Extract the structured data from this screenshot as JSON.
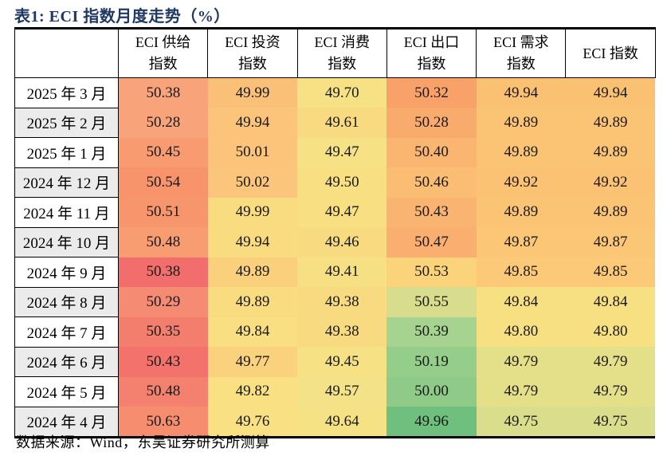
{
  "title": "表1:  ECI 指数月度走势（%）",
  "footer": "数据来源：Wind，东吴证券研究所测算",
  "colors": {
    "title_navy": "#1F3864",
    "border_black": "#000000",
    "row_label_alt_bg": "#EBEBEB",
    "row_label_bg": "#FFFFFF"
  },
  "table": {
    "columns": [
      [
        "ECI 供给",
        "指数"
      ],
      [
        "ECI 投资",
        "指数"
      ],
      [
        "ECI 消费",
        "指数"
      ],
      [
        "ECI 出口",
        "指数"
      ],
      [
        "ECI 需求",
        "指数"
      ],
      [
        "ECI 指数"
      ]
    ],
    "rows": [
      {
        "label": "2025 年 3 月",
        "cells": [
          {
            "v": "50.38",
            "bg": "#F8A379"
          },
          {
            "v": "49.99",
            "bg": "#FBC078"
          },
          {
            "v": "49.70",
            "bg": "#F6E284"
          },
          {
            "v": "50.32",
            "bg": "#F8A169"
          },
          {
            "v": "49.94",
            "bg": "#FBC173"
          },
          {
            "v": "49.94",
            "bg": "#FBC173"
          }
        ]
      },
      {
        "label": "2025 年 2 月",
        "cells": [
          {
            "v": "50.28",
            "bg": "#F8A379"
          },
          {
            "v": "49.94",
            "bg": "#FBC47A"
          },
          {
            "v": "49.61",
            "bg": "#F8DA80"
          },
          {
            "v": "50.28",
            "bg": "#F9AA6D"
          },
          {
            "v": "49.89",
            "bg": "#FBC475"
          },
          {
            "v": "49.89",
            "bg": "#FBC475"
          }
        ]
      },
      {
        "label": "2025 年 1 月",
        "cells": [
          {
            "v": "50.45",
            "bg": "#F89B71"
          },
          {
            "v": "50.01",
            "bg": "#FBC47A"
          },
          {
            "v": "49.47",
            "bg": "#F6E284"
          },
          {
            "v": "50.40",
            "bg": "#FAB671"
          },
          {
            "v": "49.89",
            "bg": "#FBC475"
          },
          {
            "v": "49.89",
            "bg": "#FBC475"
          }
        ]
      },
      {
        "label": "2024 年 12 月",
        "cells": [
          {
            "v": "50.54",
            "bg": "#F7946C"
          },
          {
            "v": "50.02",
            "bg": "#FBC67B"
          },
          {
            "v": "49.50",
            "bg": "#F7DF82"
          },
          {
            "v": "50.46",
            "bg": "#FBBC73"
          },
          {
            "v": "49.92",
            "bg": "#FBC273"
          },
          {
            "v": "49.92",
            "bg": "#FBC273"
          }
        ]
      },
      {
        "label": "2024 年 11 月",
        "cells": [
          {
            "v": "50.51",
            "bg": "#F7966D"
          },
          {
            "v": "49.99",
            "bg": "#F9DC80"
          },
          {
            "v": "49.47",
            "bg": "#F7DF82"
          },
          {
            "v": "50.43",
            "bg": "#FAB471"
          },
          {
            "v": "49.89",
            "bg": "#FBC475"
          },
          {
            "v": "49.89",
            "bg": "#FBC475"
          }
        ]
      },
      {
        "label": "2024 年 10 月",
        "cells": [
          {
            "v": "50.48",
            "bg": "#F89D72"
          },
          {
            "v": "49.94",
            "bg": "#F9DC80"
          },
          {
            "v": "49.46",
            "bg": "#F8DB80"
          },
          {
            "v": "50.47",
            "bg": "#FAAE6F"
          },
          {
            "v": "49.87",
            "bg": "#FBC776"
          },
          {
            "v": "49.87",
            "bg": "#FBC776"
          }
        ]
      },
      {
        "label": "2024 年 9 月",
        "cells": [
          {
            "v": "50.38",
            "bg": "#F26E6C"
          },
          {
            "v": "49.89",
            "bg": "#FAD07C"
          },
          {
            "v": "49.41",
            "bg": "#F7E083"
          },
          {
            "v": "50.53",
            "bg": "#FBD37B"
          },
          {
            "v": "49.85",
            "bg": "#FBC977"
          },
          {
            "v": "49.85",
            "bg": "#FBC977"
          }
        ]
      },
      {
        "label": "2024 年 8 月",
        "cells": [
          {
            "v": "50.29",
            "bg": "#F58B72"
          },
          {
            "v": "49.89",
            "bg": "#F9DB80"
          },
          {
            "v": "49.38",
            "bg": "#F8DB80"
          },
          {
            "v": "50.55",
            "bg": "#D8DD8D"
          },
          {
            "v": "49.84",
            "bg": "#F7E082"
          },
          {
            "v": "49.84",
            "bg": "#F7E082"
          }
        ]
      },
      {
        "label": "2024 年 7 月",
        "cells": [
          {
            "v": "50.35",
            "bg": "#F37E6E"
          },
          {
            "v": "49.84",
            "bg": "#F9DF81"
          },
          {
            "v": "49.38",
            "bg": "#F8DB80"
          },
          {
            "v": "50.39",
            "bg": "#A6D38F"
          },
          {
            "v": "49.80",
            "bg": "#F7E082"
          },
          {
            "v": "49.80",
            "bg": "#F7E082"
          }
        ]
      },
      {
        "label": "2024 年 6 月",
        "cells": [
          {
            "v": "50.43",
            "bg": "#F3736C"
          },
          {
            "v": "49.77",
            "bg": "#FAD17D"
          },
          {
            "v": "49.45",
            "bg": "#F6E284"
          },
          {
            "v": "50.19",
            "bg": "#95CD8A"
          },
          {
            "v": "49.79",
            "bg": "#E4E089"
          },
          {
            "v": "49.79",
            "bg": "#E4E089"
          }
        ]
      },
      {
        "label": "2024 年 5 月",
        "cells": [
          {
            "v": "50.48",
            "bg": "#F4816F"
          },
          {
            "v": "49.82",
            "bg": "#F9E082"
          },
          {
            "v": "49.57",
            "bg": "#F3E287"
          },
          {
            "v": "50.00",
            "bg": "#8FCA88"
          },
          {
            "v": "49.79",
            "bg": "#E4E089"
          },
          {
            "v": "49.79",
            "bg": "#E4E089"
          }
        ]
      },
      {
        "label": "2024 年 4 月",
        "cells": [
          {
            "v": "50.63",
            "bg": "#F58D6E"
          },
          {
            "v": "49.76",
            "bg": "#F9E082"
          },
          {
            "v": "49.64",
            "bg": "#F5E285"
          },
          {
            "v": "49.96",
            "bg": "#6FC07E"
          },
          {
            "v": "49.75",
            "bg": "#D9DD8C"
          },
          {
            "v": "49.75",
            "bg": "#D9DD8C"
          }
        ]
      }
    ]
  },
  "chart_data": {
    "type": "table",
    "title": "表1: ECI 指数月度走势（%）",
    "columns": [
      "ECI 供给指数",
      "ECI 投资指数",
      "ECI 消费指数",
      "ECI 出口指数",
      "ECI 需求指数",
      "ECI 指数"
    ],
    "row_labels": [
      "2025 年 3 月",
      "2025 年 2 月",
      "2025 年 1 月",
      "2024 年 12 月",
      "2024 年 11 月",
      "2024 年 10 月",
      "2024 年 9 月",
      "2024 年 8 月",
      "2024 年 7 月",
      "2024 年 6 月",
      "2024 年 5 月",
      "2024 年 4 月"
    ],
    "values": [
      [
        50.38,
        49.99,
        49.7,
        50.32,
        49.94,
        49.94
      ],
      [
        50.28,
        49.94,
        49.61,
        50.28,
        49.89,
        49.89
      ],
      [
        50.45,
        50.01,
        49.47,
        50.4,
        49.89,
        49.89
      ],
      [
        50.54,
        50.02,
        49.5,
        50.46,
        49.92,
        49.92
      ],
      [
        50.51,
        49.99,
        49.47,
        50.43,
        49.89,
        49.89
      ],
      [
        50.48,
        49.94,
        49.46,
        50.47,
        49.87,
        49.87
      ],
      [
        50.38,
        49.89,
        49.41,
        50.53,
        49.85,
        49.85
      ],
      [
        50.29,
        49.89,
        49.38,
        50.55,
        49.84,
        49.84
      ],
      [
        50.35,
        49.84,
        49.38,
        50.39,
        49.8,
        49.8
      ],
      [
        50.43,
        49.77,
        49.45,
        50.19,
        49.79,
        49.79
      ],
      [
        50.48,
        49.82,
        49.57,
        50.0,
        49.79,
        49.79
      ],
      [
        50.63,
        49.76,
        49.64,
        49.96,
        49.75,
        49.75
      ]
    ],
    "legend_position": "none",
    "note": "数据来源：Wind，东吴证券研究所测算"
  }
}
